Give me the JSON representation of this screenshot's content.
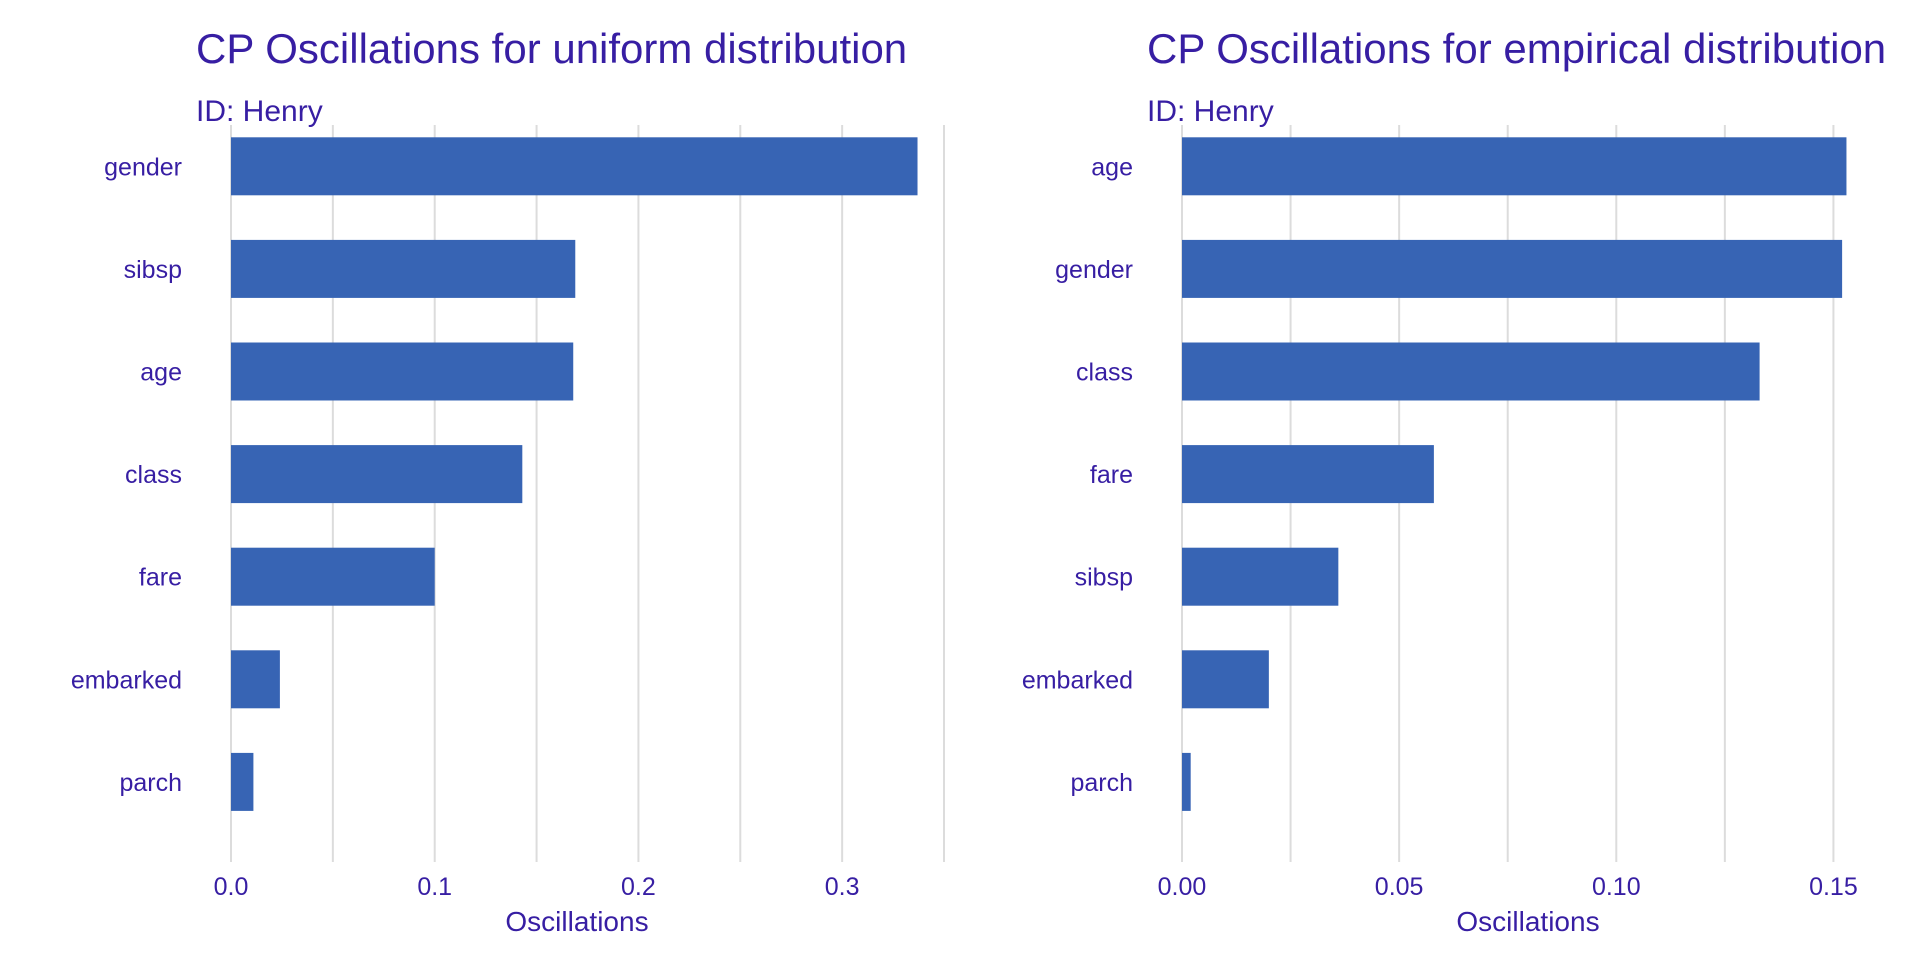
{
  "colors": {
    "bar": "#3764b4",
    "text": "#371ea3",
    "grid": "#dcdcdc"
  },
  "chart_data": [
    {
      "type": "bar",
      "orientation": "horizontal",
      "title": "CP Oscillations for uniform distribution",
      "subtitle": "ID: Henry",
      "xlabel": "Oscillations",
      "categories": [
        "gender",
        "sibsp",
        "age",
        "class",
        "fare",
        "embarked",
        "parch"
      ],
      "values": [
        0.337,
        0.169,
        0.168,
        0.143,
        0.1,
        0.024,
        0.011
      ],
      "xlim": [
        0,
        0.35
      ],
      "ticks": [
        0,
        0.1,
        0.2,
        0.3
      ],
      "tick_labels": [
        "0.0",
        "0.1",
        "0.2",
        "0.3"
      ],
      "grid": true
    },
    {
      "type": "bar",
      "orientation": "horizontal",
      "title": "CP Oscillations for empirical distribution",
      "subtitle": "ID: Henry",
      "xlabel": "Oscillations",
      "categories": [
        "age",
        "gender",
        "class",
        "fare",
        "sibsp",
        "embarked",
        "parch"
      ],
      "values": [
        0.153,
        0.152,
        0.133,
        0.058,
        0.036,
        0.02,
        0.002
      ],
      "xlim": [
        0,
        0.1575
      ],
      "ticks": [
        0,
        0.05,
        0.1,
        0.15
      ],
      "tick_labels": [
        "0.00",
        "0.05",
        "0.10",
        "0.15"
      ],
      "grid": true
    }
  ]
}
